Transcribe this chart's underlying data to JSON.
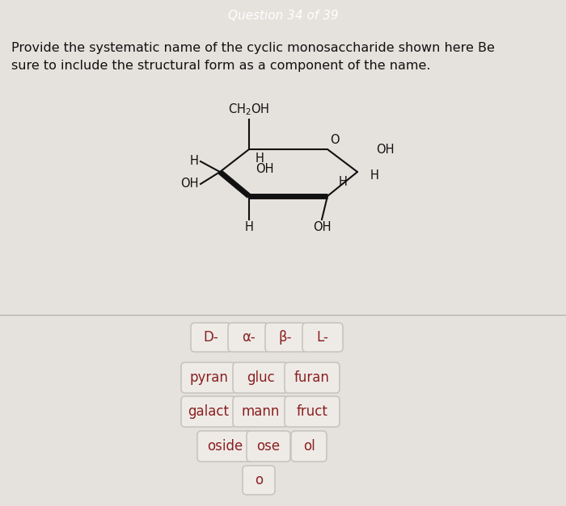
{
  "header_text": "Question 34 of 39",
  "header_bg": "#cc2020",
  "header_text_color": "#ffffff",
  "body_bg": "#e5e1dd",
  "question_text1": "Provide the systematic name of the cyclic monosaccharide shown here Be",
  "question_text2": "sure to include the structural form as a component of the name.",
  "question_color": "#111111",
  "button_bg": "#eeebe7",
  "button_border": "#c8c4c0",
  "button_text_color": "#8b2020",
  "lower_bg": "#d5d1cd",
  "buttons_row1": [
    "D-",
    "α-",
    "β-",
    "L-"
  ],
  "buttons_row2": [
    "pyran",
    "gluc",
    "furan"
  ],
  "buttons_row3": [
    "galact",
    "mann",
    "fruct"
  ],
  "buttons_row4": [
    "oside",
    "ose",
    "ol"
  ],
  "buttons_row5": [
    "o"
  ]
}
